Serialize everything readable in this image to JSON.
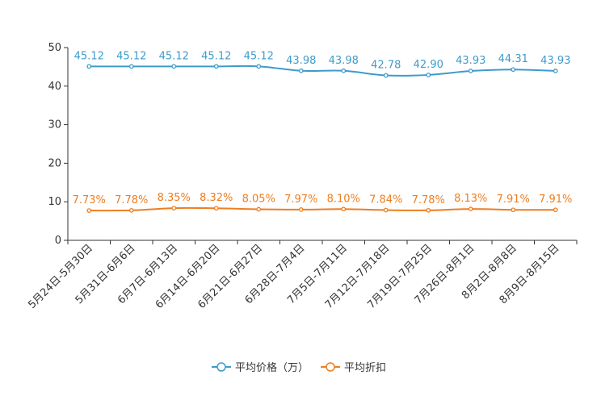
{
  "chart_data": {
    "type": "line",
    "title": "",
    "xlabel": "",
    "ylabel": "",
    "ylim": [
      0,
      50
    ],
    "yticks": [
      0,
      10,
      20,
      30,
      40,
      50
    ],
    "grid": false,
    "legend_position": "bottom-center",
    "categories": [
      "5月24日-5月30日",
      "5月31日-6月6日",
      "6月7日-6月13日",
      "6月14日-6月20日",
      "6月21日-6月27日",
      "6月28日-7月4日",
      "7月5日-7月11日",
      "7月12日-7月18日",
      "7月19日-7月25日",
      "7月26日-8月1日",
      "8月2日-8月8日",
      "8月9日-8月15日"
    ],
    "series": [
      {
        "name": "平均价格（万）",
        "color": "#3d9bcb",
        "values": [
          45.12,
          45.12,
          45.12,
          45.12,
          45.12,
          43.98,
          43.98,
          42.78,
          42.9,
          43.93,
          44.31,
          43.93
        ],
        "labels": [
          "45.12",
          "45.12",
          "45.12",
          "45.12",
          "45.12",
          "43.98",
          "43.98",
          "42.78",
          "42.90",
          "43.93",
          "44.31",
          "43.93"
        ]
      },
      {
        "name": "平均折扣",
        "color": "#ee7d1f",
        "values": [
          7.73,
          7.78,
          8.35,
          8.32,
          8.05,
          7.97,
          8.1,
          7.84,
          7.78,
          8.13,
          7.91,
          7.91
        ],
        "labels": [
          "7.73%",
          "7.78%",
          "8.35%",
          "8.32%",
          "8.05%",
          "7.97%",
          "8.10%",
          "7.84%",
          "7.78%",
          "8.13%",
          "7.91%",
          "7.91%"
        ]
      }
    ]
  }
}
